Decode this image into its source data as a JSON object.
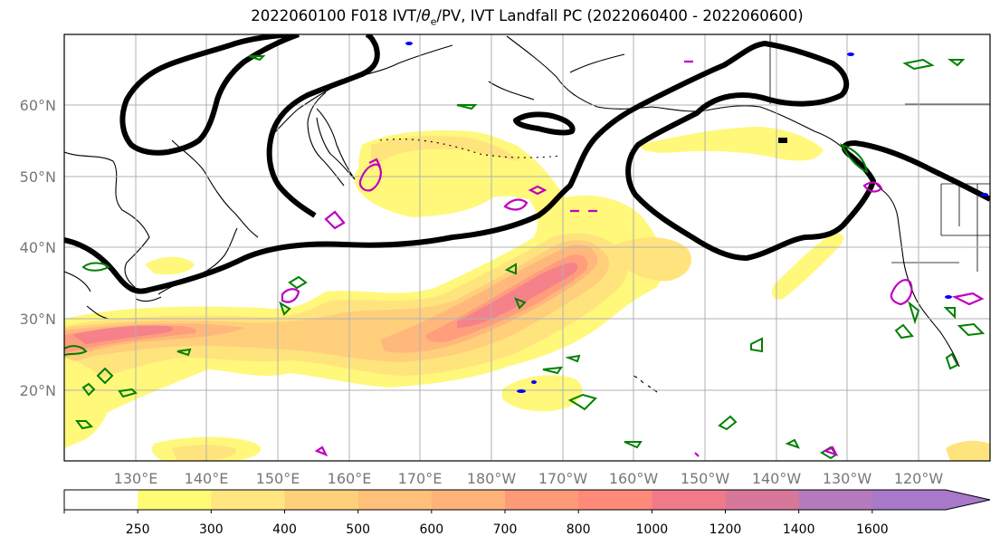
{
  "title": {
    "prefix": "2022060100 F018 IVT/",
    "theta": "θ",
    "theta_sub": "e",
    "suffix": "/PV, IVT Landfall PC (2022060400 - 2022060600)"
  },
  "map": {
    "lat_labels": [
      "60°N",
      "50°N",
      "40°N",
      "30°N",
      "20°N"
    ],
    "lon_labels": [
      "130°E",
      "140°E",
      "150°E",
      "160°E",
      "170°E",
      "180°W",
      "170°W",
      "160°W",
      "150°W",
      "140°W",
      "130°W",
      "120°W"
    ]
  },
  "colorbar": {
    "levels": [
      "250",
      "300",
      "400",
      "500",
      "600",
      "700",
      "800",
      "1000",
      "1200",
      "1400",
      "1600"
    ],
    "colors": [
      "#ffffff",
      "#fffb75",
      "#ffe680",
      "#ffd07a",
      "#ffc07a",
      "#ffb27a",
      "#ff9a78",
      "#ff8a7a",
      "#f07a88",
      "#d7789a",
      "#b57abe",
      "#a779c8"
    ]
  },
  "fields": {
    "ivt_fill_colors": [
      "#fff87a",
      "#ffe47e",
      "#ffcf7c",
      "#ffb87c",
      "#ff9d7c",
      "#f5828a",
      "#e07a90"
    ],
    "pv_contour_color": "#000000",
    "landfall_pc_positive_color": "#008000",
    "landfall_pc_negative_color": "#c000c0",
    "small_negative_color": "#0000ff"
  }
}
